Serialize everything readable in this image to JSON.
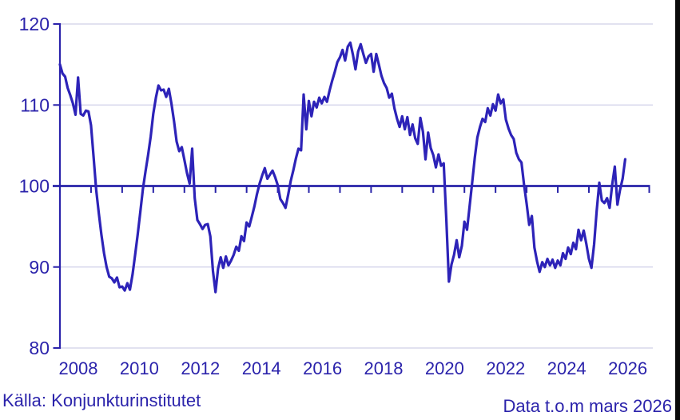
{
  "footer": {
    "source": "Källa: Konjunkturinstitutet",
    "note": "Data t.o.m mars 2026"
  },
  "colors": {
    "series_line": "#2d23b8",
    "axis_and_labels": "#2b23ab",
    "reference_line": "#2722a8",
    "gridline": "#d8d8ec",
    "background": "#ffffff",
    "screen_edge": "#0a0a0a"
  },
  "chart_data": {
    "type": "line",
    "title": "",
    "xlabel": "",
    "ylabel": "",
    "grid": "horizontal",
    "legend": "none",
    "ylim": [
      80,
      120
    ],
    "yticks": [
      120,
      110,
      100,
      90,
      80
    ],
    "ytick_labels": [
      "120",
      "110",
      "100",
      "90",
      "80"
    ],
    "xtick_years_labeled": [
      "2008",
      "2010",
      "2012",
      "2014",
      "2016",
      "2018",
      "2020",
      "2022",
      "2024",
      "2026"
    ],
    "x_axis_year_ticks_start": 2008,
    "x_axis_year_ticks_end": 2026,
    "reference_line_value": 100,
    "series_start": "2008-01",
    "series_end": "2026-03",
    "series_frequency": "monthly",
    "monthly_values": [
      115.0,
      113.9,
      113.5,
      112.1,
      111.2,
      110.2,
      108.8,
      113.4,
      108.9,
      108.7,
      109.3,
      109.2,
      107.5,
      103.5,
      99.5,
      96.6,
      94.0,
      91.7,
      90.0,
      88.8,
      88.6,
      88.1,
      88.7,
      87.5,
      87.6,
      87.1,
      88.0,
      87.2,
      89.1,
      91.5,
      94.0,
      96.8,
      99.6,
      101.8,
      103.8,
      106.1,
      108.9,
      110.9,
      112.4,
      111.8,
      111.9,
      111.0,
      112.0,
      110.2,
      108.0,
      105.5,
      104.3,
      104.8,
      103.2,
      101.6,
      100.3,
      104.6,
      98.5,
      95.8,
      95.3,
      94.7,
      95.2,
      95.3,
      93.8,
      89.5,
      86.9,
      89.8,
      91.2,
      89.9,
      91.3,
      90.2,
      90.8,
      91.5,
      92.5,
      92.0,
      93.8,
      93.2,
      95.5,
      95.0,
      96.2,
      97.5,
      99.0,
      100.3,
      101.3,
      102.2,
      100.9,
      101.4,
      101.9,
      101.1,
      100.1,
      98.4,
      97.9,
      97.3,
      98.9,
      100.6,
      101.9,
      103.4,
      104.6,
      104.4,
      111.3,
      107.0,
      110.5,
      108.6,
      110.4,
      109.7,
      110.9,
      110.2,
      111.0,
      110.4,
      111.8,
      113.0,
      114.1,
      115.3,
      115.9,
      116.8,
      115.5,
      117.2,
      117.7,
      116.2,
      114.4,
      116.6,
      117.5,
      116.3,
      115.2,
      116.0,
      116.3,
      114.1,
      116.3,
      115.0,
      113.6,
      112.7,
      112.1,
      110.9,
      111.4,
      109.6,
      108.3,
      107.3,
      108.6,
      107.0,
      108.5,
      106.3,
      107.6,
      105.9,
      105.2,
      108.4,
      106.7,
      103.3,
      106.6,
      104.7,
      103.8,
      102.3,
      103.9,
      102.5,
      102.8,
      96.0,
      88.2,
      90.3,
      91.5,
      93.3,
      91.2,
      92.6,
      95.6,
      94.6,
      97.5,
      100.5,
      103.5,
      106.0,
      107.3,
      108.3,
      107.9,
      109.6,
      108.7,
      110.1,
      109.3,
      111.3,
      110.2,
      110.7,
      108.2,
      107.1,
      106.3,
      105.8,
      104.1,
      103.3,
      102.9,
      100.1,
      97.8,
      95.2,
      96.3,
      92.4,
      90.7,
      89.4,
      90.6,
      90.0,
      91.0,
      90.2,
      90.9,
      89.9,
      90.8,
      90.2,
      91.7,
      91.0,
      92.4,
      91.6,
      93.0,
      92.2,
      94.6,
      93.3,
      94.5,
      92.9,
      91.0,
      89.9,
      92.8,
      96.9,
      100.4,
      98.2,
      97.9,
      98.5,
      97.3,
      100.2,
      102.4,
      97.7,
      99.5,
      100.9,
      103.3
    ]
  }
}
